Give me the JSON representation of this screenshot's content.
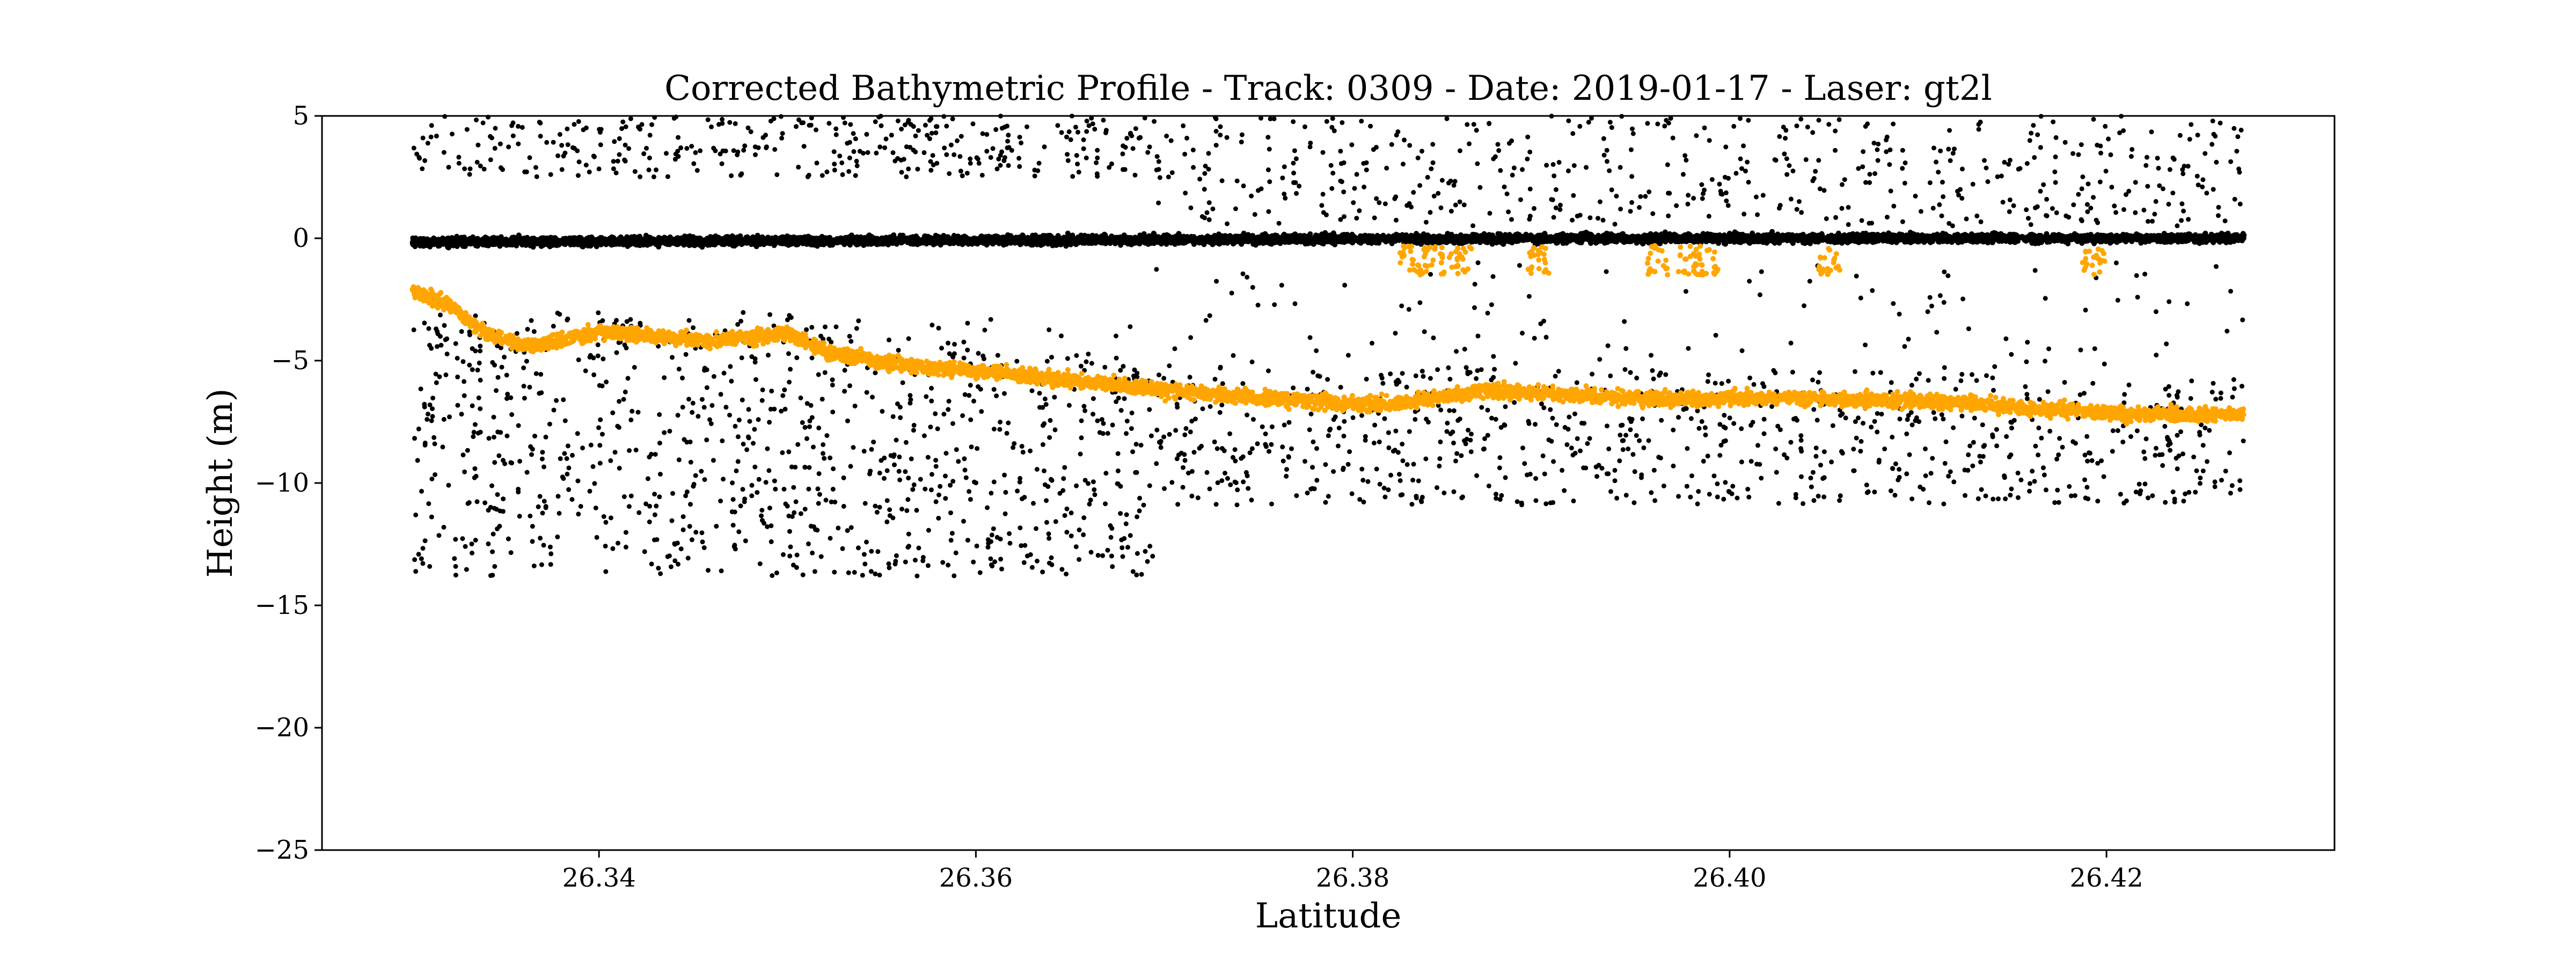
{
  "chart_data": {
    "type": "scatter",
    "title": "Corrected Bathymetric Profile - Track: 0309 - Date: 2019-01-17 - Laser: gt2l",
    "xlabel": "Latitude",
    "ylabel": "Height (m)",
    "xlim": [
      26.3253,
      26.4321
    ],
    "ylim": [
      -25,
      5
    ],
    "xticks": [
      26.34,
      26.36,
      26.38,
      26.4,
      26.42
    ],
    "xtick_labels": [
      "26.34",
      "26.36",
      "26.38",
      "26.40",
      "26.42"
    ],
    "yticks": [
      5,
      0,
      -5,
      -10,
      -15,
      -20,
      -25
    ],
    "ytick_labels": [
      "5",
      "0",
      "−5",
      "−10",
      "−15",
      "−20",
      "−25"
    ],
    "grid": false,
    "legend": "none",
    "x_range_data": [
      26.3301,
      26.4273
    ],
    "series": [
      {
        "role": "sea-surface",
        "color": "#000000",
        "profile": [
          {
            "x": 26.3301,
            "y": -0.15
          },
          {
            "x": 26.35,
            "y": -0.1
          },
          {
            "x": 26.37,
            "y": -0.05
          },
          {
            "x": 26.39,
            "y": 0.0
          },
          {
            "x": 26.41,
            "y": 0.0
          },
          {
            "x": 26.4273,
            "y": 0.0
          }
        ]
      },
      {
        "role": "background-noise",
        "color": "#000000",
        "regions": [
          {
            "x": [
              26.3301,
              26.3694
            ],
            "above_y": [
              2.5,
              5.0
            ],
            "below_y": [
              -13.8,
              -3.0
            ]
          },
          {
            "x": [
              26.3694,
              26.4273
            ],
            "above_y": [
              0.5,
              5.0
            ],
            "below_y": [
              -10.9,
              -1.0
            ]
          }
        ]
      },
      {
        "role": "corrected-bathymetry",
        "color": "#FFA500",
        "profile": [
          {
            "x": 26.3301,
            "y": -2.1
          },
          {
            "x": 26.332,
            "y": -2.7
          },
          {
            "x": 26.334,
            "y": -3.9
          },
          {
            "x": 26.336,
            "y": -4.4
          },
          {
            "x": 26.338,
            "y": -4.2
          },
          {
            "x": 26.34,
            "y": -3.8
          },
          {
            "x": 26.343,
            "y": -4.0
          },
          {
            "x": 26.346,
            "y": -4.2
          },
          {
            "x": 26.35,
            "y": -3.9
          },
          {
            "x": 26.352,
            "y": -4.6
          },
          {
            "x": 26.356,
            "y": -5.2
          },
          {
            "x": 26.36,
            "y": -5.4
          },
          {
            "x": 26.365,
            "y": -5.8
          },
          {
            "x": 26.37,
            "y": -6.2
          },
          {
            "x": 26.375,
            "y": -6.5
          },
          {
            "x": 26.38,
            "y": -6.8
          },
          {
            "x": 26.383,
            "y": -6.7
          },
          {
            "x": 26.387,
            "y": -6.2
          },
          {
            "x": 26.392,
            "y": -6.4
          },
          {
            "x": 26.397,
            "y": -6.6
          },
          {
            "x": 26.402,
            "y": -6.5
          },
          {
            "x": 26.407,
            "y": -6.6
          },
          {
            "x": 26.412,
            "y": -6.7
          },
          {
            "x": 26.417,
            "y": -7.0
          },
          {
            "x": 26.422,
            "y": -7.2
          },
          {
            "x": 26.4273,
            "y": -7.2
          }
        ],
        "shallow_clusters": [
          26.3831,
          26.3843,
          26.3857,
          26.3898,
          26.3962,
          26.3978,
          26.3988,
          26.4053,
          26.4193
        ]
      }
    ]
  }
}
